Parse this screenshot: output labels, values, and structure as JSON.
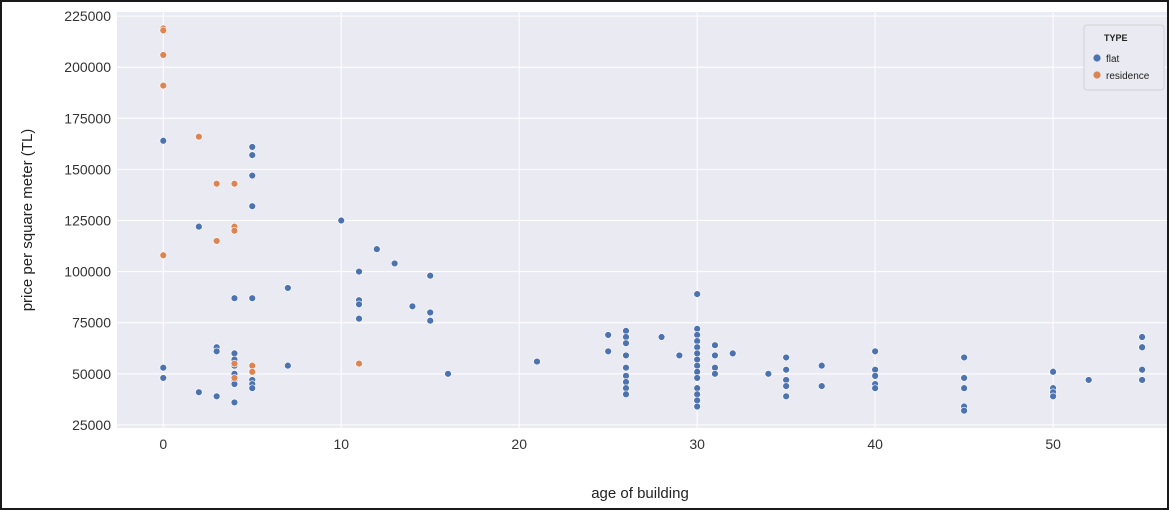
{
  "chart_data": {
    "type": "scatter",
    "title": "",
    "xlabel": "age of building",
    "ylabel": "price per square meter (TL)",
    "xlim": [
      -2.6,
      56.4
    ],
    "ylim": [
      23500,
      227000
    ],
    "xticks": [
      0,
      10,
      20,
      30,
      40,
      50
    ],
    "yticks": [
      25000,
      50000,
      75000,
      100000,
      125000,
      150000,
      175000,
      200000,
      225000
    ],
    "grid": true,
    "legend": {
      "title": "TYPE",
      "placement": "top-right"
    },
    "colors": {
      "flat": "#4c72b0",
      "residence": "#dd8452",
      "plot_bg": "#eaeaf2",
      "grid": "#ffffff"
    },
    "series": [
      {
        "name": "flat",
        "color": "#4c72b0",
        "points": [
          [
            0,
            164000
          ],
          [
            0,
            53000
          ],
          [
            0,
            48000
          ],
          [
            2,
            122000
          ],
          [
            2,
            41000
          ],
          [
            3,
            63000
          ],
          [
            3,
            61000
          ],
          [
            3,
            39000
          ],
          [
            4,
            87000
          ],
          [
            4,
            60000
          ],
          [
            4,
            57000
          ],
          [
            4,
            54000
          ],
          [
            4,
            50000
          ],
          [
            4,
            47000
          ],
          [
            4,
            45000
          ],
          [
            4,
            36000
          ],
          [
            5,
            161000
          ],
          [
            5,
            157000
          ],
          [
            5,
            147000
          ],
          [
            5,
            132000
          ],
          [
            5,
            87000
          ],
          [
            5,
            47000
          ],
          [
            5,
            45000
          ],
          [
            5,
            43000
          ],
          [
            7,
            92000
          ],
          [
            7,
            54000
          ],
          [
            10,
            125000
          ],
          [
            11,
            100000
          ],
          [
            11,
            86000
          ],
          [
            11,
            84000
          ],
          [
            11,
            77000
          ],
          [
            12,
            111000
          ],
          [
            13,
            104000
          ],
          [
            14,
            83000
          ],
          [
            15,
            98000
          ],
          [
            15,
            80000
          ],
          [
            15,
            76000
          ],
          [
            16,
            50000
          ],
          [
            21,
            56000
          ],
          [
            25,
            69000
          ],
          [
            25,
            61000
          ],
          [
            26,
            71000
          ],
          [
            26,
            68000
          ],
          [
            26,
            65000
          ],
          [
            26,
            59000
          ],
          [
            26,
            53000
          ],
          [
            26,
            49000
          ],
          [
            26,
            46000
          ],
          [
            26,
            43000
          ],
          [
            26,
            40000
          ],
          [
            28,
            68000
          ],
          [
            29,
            59000
          ],
          [
            30,
            89000
          ],
          [
            30,
            72000
          ],
          [
            30,
            69000
          ],
          [
            30,
            66000
          ],
          [
            30,
            63000
          ],
          [
            30,
            60000
          ],
          [
            30,
            57000
          ],
          [
            30,
            54000
          ],
          [
            30,
            51000
          ],
          [
            30,
            48000
          ],
          [
            30,
            43000
          ],
          [
            30,
            40000
          ],
          [
            30,
            37000
          ],
          [
            30,
            34000
          ],
          [
            31,
            64000
          ],
          [
            31,
            59000
          ],
          [
            31,
            53000
          ],
          [
            31,
            50000
          ],
          [
            32,
            60000
          ],
          [
            34,
            50000
          ],
          [
            35,
            58000
          ],
          [
            35,
            52000
          ],
          [
            35,
            47000
          ],
          [
            35,
            44000
          ],
          [
            35,
            39000
          ],
          [
            37,
            54000
          ],
          [
            37,
            44000
          ],
          [
            40,
            61000
          ],
          [
            40,
            52000
          ],
          [
            40,
            49000
          ],
          [
            40,
            45000
          ],
          [
            40,
            43000
          ],
          [
            45,
            58000
          ],
          [
            45,
            48000
          ],
          [
            45,
            43000
          ],
          [
            45,
            34000
          ],
          [
            45,
            32000
          ],
          [
            50,
            51000
          ],
          [
            50,
            43000
          ],
          [
            50,
            41000
          ],
          [
            50,
            39000
          ],
          [
            52,
            47000
          ],
          [
            55,
            68000
          ],
          [
            55,
            63000
          ],
          [
            55,
            52000
          ],
          [
            55,
            47000
          ]
        ]
      },
      {
        "name": "residence",
        "color": "#dd8452",
        "points": [
          [
            0,
            219000
          ],
          [
            0,
            218000
          ],
          [
            0,
            206000
          ],
          [
            0,
            191000
          ],
          [
            0,
            108000
          ],
          [
            2,
            166000
          ],
          [
            3,
            143000
          ],
          [
            3,
            115000
          ],
          [
            4,
            143000
          ],
          [
            4,
            122000
          ],
          [
            4,
            120000
          ],
          [
            4,
            55000
          ],
          [
            4,
            48000
          ],
          [
            5,
            54000
          ],
          [
            5,
            51000
          ],
          [
            11,
            55000
          ]
        ]
      }
    ]
  }
}
